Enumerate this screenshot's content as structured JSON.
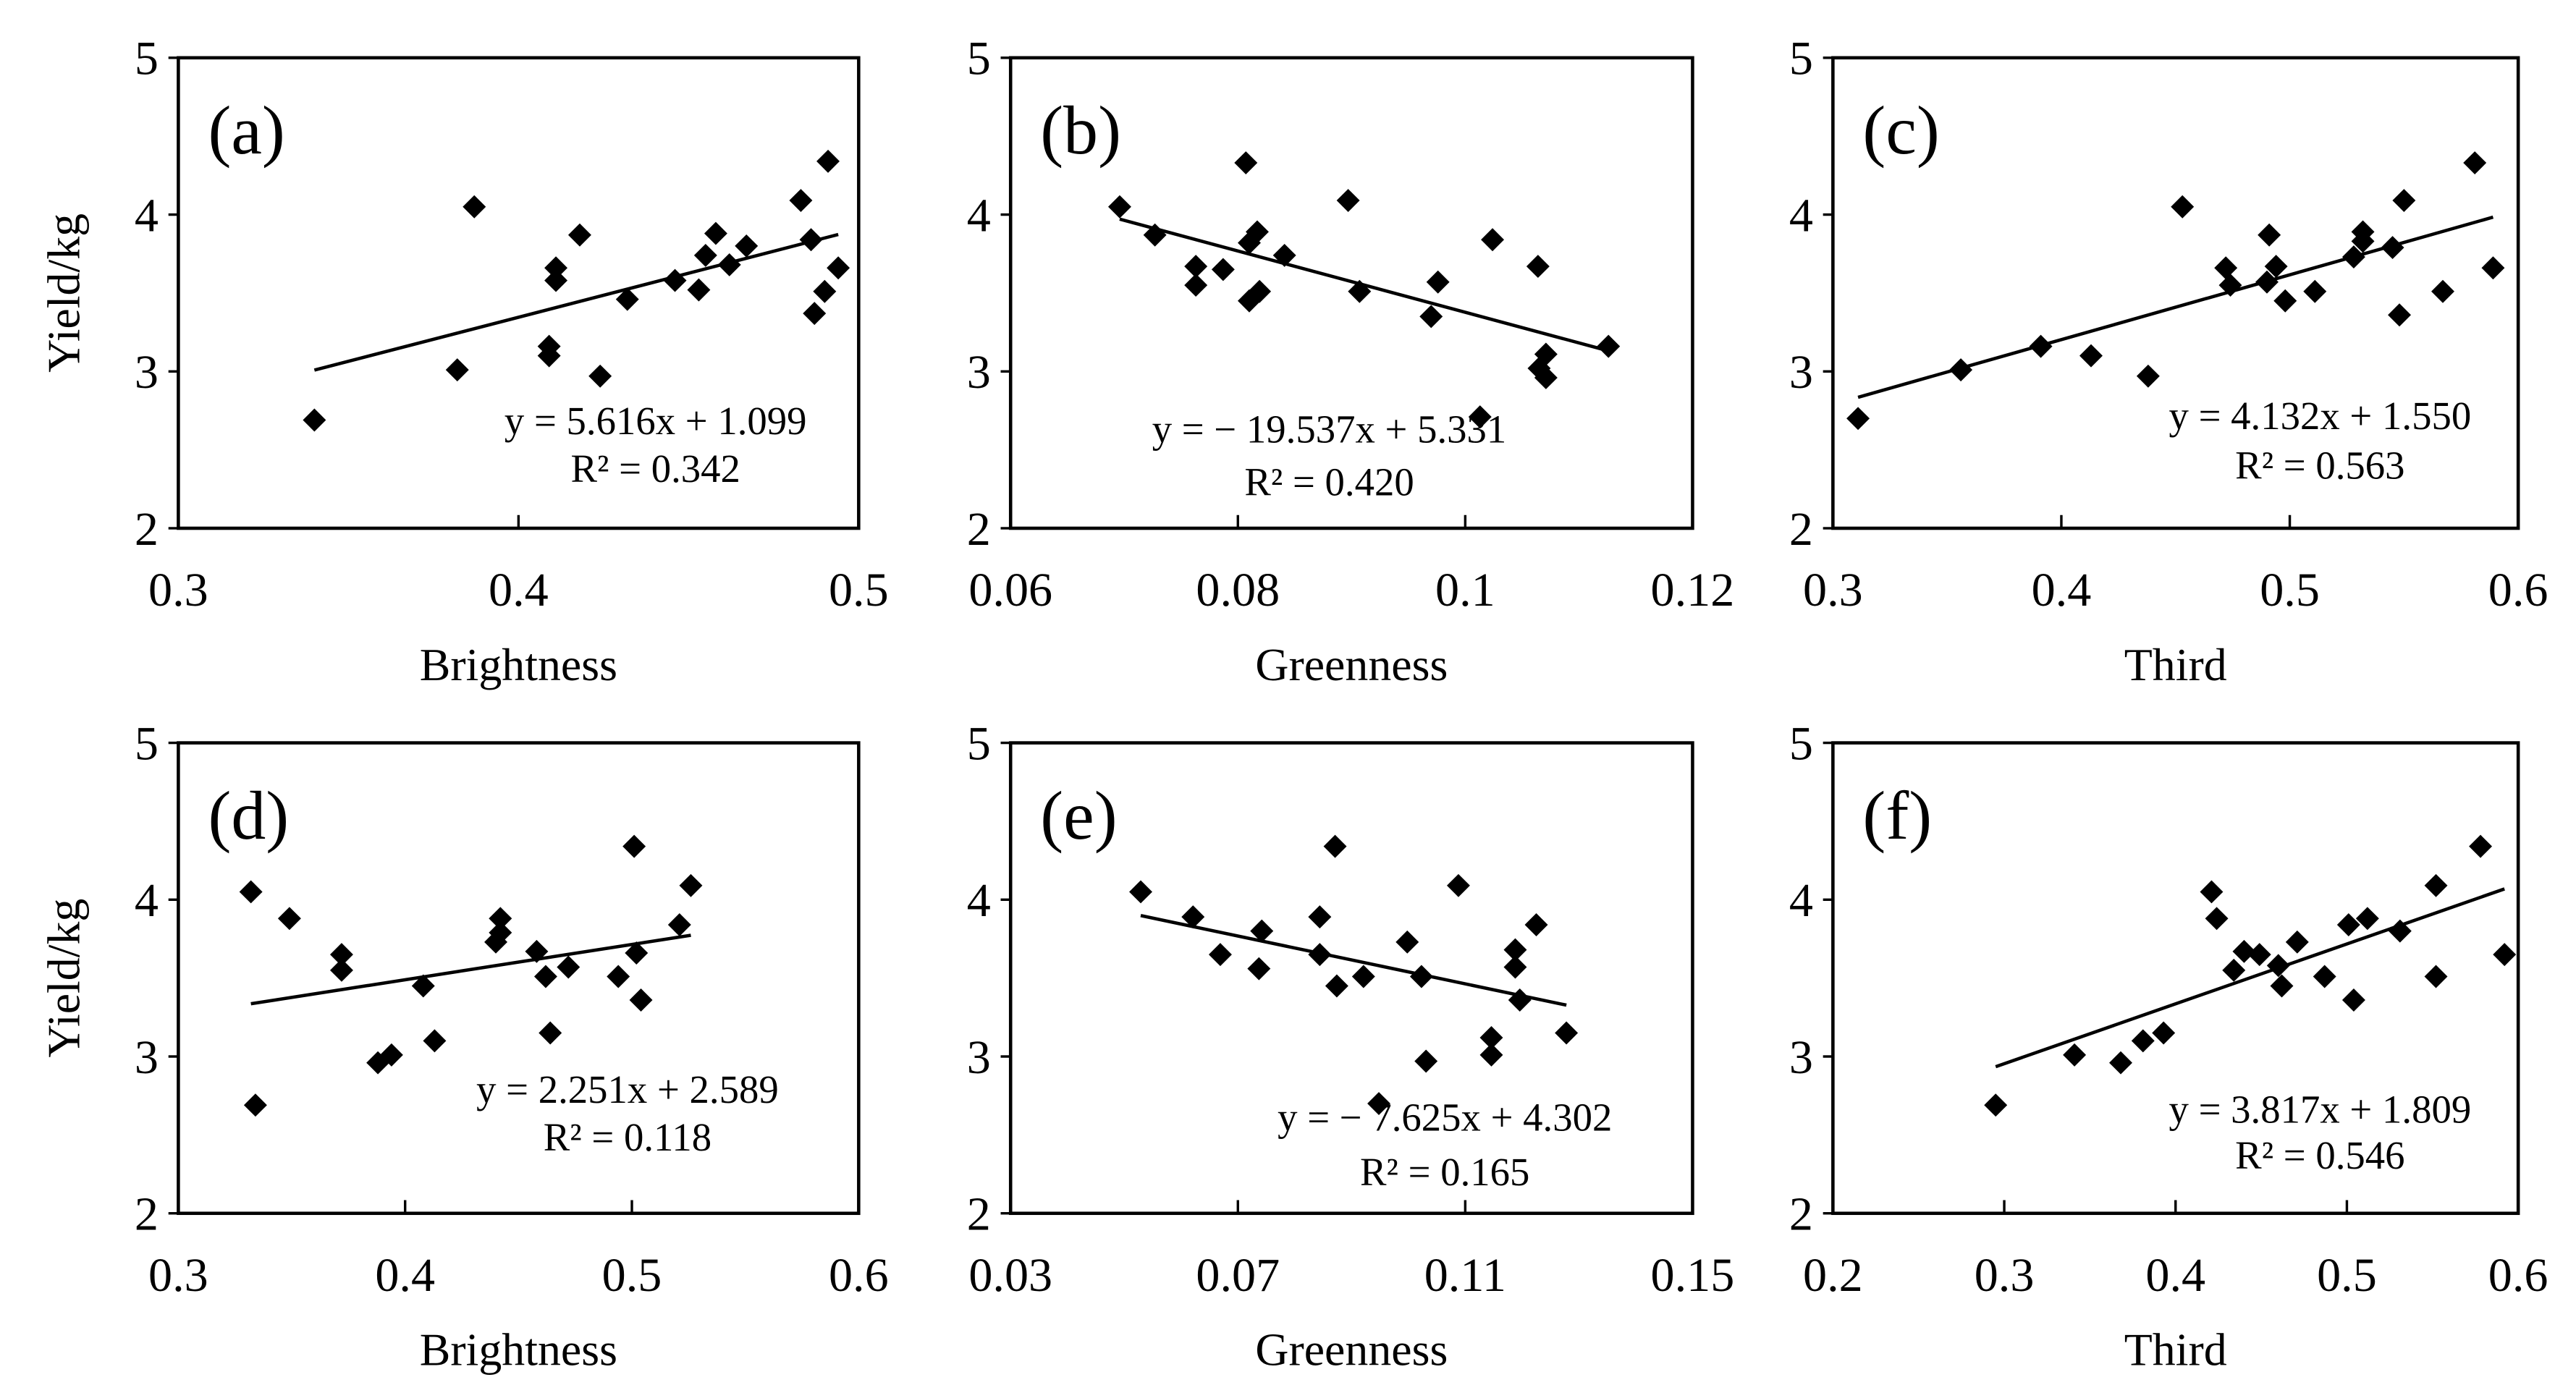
{
  "chart_data": [
    {
      "type": "scatter",
      "panel_label": "(a)",
      "xlabel": "Brightness",
      "ylabel": "Yield/kg",
      "xlim": [
        0.3,
        0.5
      ],
      "xticks": [
        0.3,
        0.4,
        0.5
      ],
      "xtick_labels": [
        "0.3",
        "0.4",
        "0.5"
      ],
      "ylim": [
        2,
        5
      ],
      "yticks": [
        2,
        3,
        4,
        5
      ],
      "ytick_labels": [
        "2",
        "3",
        "4",
        "5"
      ],
      "equation": "y = 5.616x + 1.099",
      "r2": "R² = 0.342",
      "slope": 5.616,
      "intercept": 1.099,
      "points": [
        [
          0.34,
          2.69
        ],
        [
          0.382,
          3.01
        ],
        [
          0.387,
          4.05
        ],
        [
          0.411,
          3.58
        ],
        [
          0.411,
          3.66
        ],
        [
          0.409,
          3.16
        ],
        [
          0.409,
          3.1
        ],
        [
          0.418,
          3.87
        ],
        [
          0.424,
          2.97
        ],
        [
          0.432,
          3.46
        ],
        [
          0.446,
          3.58
        ],
        [
          0.453,
          3.52
        ],
        [
          0.455,
          3.74
        ],
        [
          0.458,
          3.88
        ],
        [
          0.462,
          3.68
        ],
        [
          0.467,
          3.8
        ],
        [
          0.483,
          4.09
        ],
        [
          0.486,
          3.84
        ],
        [
          0.491,
          4.34
        ],
        [
          0.487,
          3.37
        ],
        [
          0.49,
          3.51
        ],
        [
          0.494,
          3.66
        ]
      ]
    },
    {
      "type": "scatter",
      "panel_label": "(b)",
      "xlabel": "Greenness",
      "ylabel": "",
      "xlim": [
        0.06,
        0.12
      ],
      "xticks": [
        0.06,
        0.08,
        0.1,
        0.12
      ],
      "xtick_labels": [
        "0.06",
        "0.08",
        "0.1",
        "0.12"
      ],
      "ylim": [
        2,
        5
      ],
      "yticks": [
        2,
        3,
        4,
        5
      ],
      "ytick_labels": [
        "2",
        "3",
        "4",
        "5"
      ],
      "equation": "y = − 19.537x + 5.331",
      "r2": "R² = 0.420",
      "slope": -19.537,
      "intercept": 5.331,
      "points": [
        [
          0.0696,
          4.05
        ],
        [
          0.0727,
          3.87
        ],
        [
          0.0763,
          3.67
        ],
        [
          0.0763,
          3.55
        ],
        [
          0.0787,
          3.65
        ],
        [
          0.0807,
          4.33
        ],
        [
          0.081,
          3.82
        ],
        [
          0.0817,
          3.89
        ],
        [
          0.081,
          3.45
        ],
        [
          0.0819,
          3.51
        ],
        [
          0.0841,
          3.74
        ],
        [
          0.0897,
          4.09
        ],
        [
          0.0907,
          3.51
        ],
        [
          0.0976,
          3.57
        ],
        [
          0.097,
          3.35
        ],
        [
          0.1013,
          2.71
        ],
        [
          0.1024,
          3.84
        ],
        [
          0.1064,
          3.67
        ],
        [
          0.1065,
          3.02
        ],
        [
          0.1071,
          3.11
        ],
        [
          0.1071,
          2.96
        ],
        [
          0.1126,
          3.16
        ]
      ]
    },
    {
      "type": "scatter",
      "panel_label": "(c)",
      "xlabel": "Third",
      "ylabel": "",
      "xlim": [
        0.3,
        0.6
      ],
      "xticks": [
        0.3,
        0.4,
        0.5,
        0.6
      ],
      "xtick_labels": [
        "0.3",
        "0.4",
        "0.5",
        "0.6"
      ],
      "ylim": [
        2,
        5
      ],
      "yticks": [
        2,
        3,
        4,
        5
      ],
      "ytick_labels": [
        "2",
        "3",
        "4",
        "5"
      ],
      "equation": "y = 4.132x + 1.550",
      "r2": "R² = 0.563",
      "slope": 4.132,
      "intercept": 1.55,
      "points": [
        [
          0.311,
          2.7
        ],
        [
          0.356,
          3.01
        ],
        [
          0.391,
          3.16
        ],
        [
          0.413,
          3.1
        ],
        [
          0.438,
          2.97
        ],
        [
          0.453,
          4.05
        ],
        [
          0.472,
          3.66
        ],
        [
          0.474,
          3.55
        ],
        [
          0.491,
          3.87
        ],
        [
          0.49,
          3.57
        ],
        [
          0.494,
          3.67
        ],
        [
          0.498,
          3.45
        ],
        [
          0.511,
          3.51
        ],
        [
          0.528,
          3.73
        ],
        [
          0.532,
          3.89
        ],
        [
          0.532,
          3.83
        ],
        [
          0.545,
          3.79
        ],
        [
          0.548,
          3.36
        ],
        [
          0.55,
          4.09
        ],
        [
          0.567,
          3.51
        ],
        [
          0.581,
          4.33
        ],
        [
          0.589,
          3.66
        ]
      ]
    },
    {
      "type": "scatter",
      "panel_label": "(d)",
      "xlabel": "Brightness",
      "ylabel": "Yield/kg",
      "xlim": [
        0.3,
        0.6
      ],
      "xticks": [
        0.3,
        0.4,
        0.5,
        0.6
      ],
      "xtick_labels": [
        "0.3",
        "0.4",
        "0.5",
        "0.6"
      ],
      "ylim": [
        2,
        5
      ],
      "yticks": [
        2,
        3,
        4,
        5
      ],
      "ytick_labels": [
        "2",
        "3",
        "4",
        "5"
      ],
      "equation": "y = 2.251x + 2.589",
      "r2": "R² = 0.118",
      "slope": 2.251,
      "intercept": 2.589,
      "points": [
        [
          0.332,
          4.05
        ],
        [
          0.334,
          2.69
        ],
        [
          0.349,
          3.88
        ],
        [
          0.372,
          3.65
        ],
        [
          0.372,
          3.55
        ],
        [
          0.388,
          2.96
        ],
        [
          0.394,
          3.01
        ],
        [
          0.408,
          3.45
        ],
        [
          0.413,
          3.1
        ],
        [
          0.44,
          3.73
        ],
        [
          0.442,
          3.79
        ],
        [
          0.442,
          3.88
        ],
        [
          0.458,
          3.67
        ],
        [
          0.462,
          3.51
        ],
        [
          0.464,
          3.15
        ],
        [
          0.472,
          3.57
        ],
        [
          0.494,
          3.51
        ],
        [
          0.501,
          4.34
        ],
        [
          0.502,
          3.66
        ],
        [
          0.504,
          3.36
        ],
        [
          0.521,
          3.84
        ],
        [
          0.526,
          4.09
        ]
      ]
    },
    {
      "type": "scatter",
      "panel_label": "(e)",
      "xlabel": "Greenness",
      "ylabel": "",
      "xlim": [
        0.03,
        0.15
      ],
      "xticks": [
        0.03,
        0.07,
        0.11,
        0.15
      ],
      "xtick_labels": [
        "0.03",
        "0.07",
        "0.11",
        "0.15"
      ],
      "ylim": [
        2,
        5
      ],
      "yticks": [
        2,
        3,
        4,
        5
      ],
      "ytick_labels": [
        "2",
        "3",
        "4",
        "5"
      ],
      "equation": "y = − 7.625x + 4.302",
      "r2": "R² = 0.165",
      "slope": -7.625,
      "intercept": 4.302,
      "points": [
        [
          0.0529,
          4.05
        ],
        [
          0.0621,
          3.89
        ],
        [
          0.0669,
          3.65
        ],
        [
          0.0742,
          3.8
        ],
        [
          0.0737,
          3.56
        ],
        [
          0.0844,
          3.89
        ],
        [
          0.0844,
          3.65
        ],
        [
          0.0871,
          4.34
        ],
        [
          0.0874,
          3.45
        ],
        [
          0.0921,
          3.51
        ],
        [
          0.0998,
          3.73
        ],
        [
          0.1023,
          3.51
        ],
        [
          0.1031,
          2.97
        ],
        [
          0.0948,
          2.7
        ],
        [
          0.1088,
          4.09
        ],
        [
          0.1146,
          3.12
        ],
        [
          0.1146,
          3.01
        ],
        [
          0.1188,
          3.68
        ],
        [
          0.1188,
          3.57
        ],
        [
          0.1196,
          3.36
        ],
        [
          0.1225,
          3.84
        ],
        [
          0.1278,
          3.15
        ]
      ]
    },
    {
      "type": "scatter",
      "panel_label": "(f)",
      "xlabel": "Third",
      "ylabel": "",
      "xlim": [
        0.2,
        0.6
      ],
      "xticks": [
        0.2,
        0.3,
        0.4,
        0.5,
        0.6
      ],
      "xtick_labels": [
        "0.2",
        "0.3",
        "0.4",
        "0.5",
        "0.6"
      ],
      "ylim": [
        2,
        5
      ],
      "yticks": [
        2,
        3,
        4,
        5
      ],
      "ytick_labels": [
        "2",
        "3",
        "4",
        "5"
      ],
      "equation": "y = 3.817x + 1.809",
      "r2": "R² = 0.546",
      "slope": 3.817,
      "intercept": 1.809,
      "points": [
        [
          0.295,
          2.69
        ],
        [
          0.341,
          3.01
        ],
        [
          0.368,
          2.96
        ],
        [
          0.381,
          3.1
        ],
        [
          0.393,
          3.15
        ],
        [
          0.421,
          4.05
        ],
        [
          0.424,
          3.88
        ],
        [
          0.434,
          3.55
        ],
        [
          0.44,
          3.67
        ],
        [
          0.449,
          3.65
        ],
        [
          0.46,
          3.58
        ],
        [
          0.462,
          3.45
        ],
        [
          0.471,
          3.73
        ],
        [
          0.487,
          3.51
        ],
        [
          0.501,
          3.84
        ],
        [
          0.512,
          3.88
        ],
        [
          0.504,
          3.36
        ],
        [
          0.531,
          3.8
        ],
        [
          0.552,
          4.09
        ],
        [
          0.552,
          3.51
        ],
        [
          0.578,
          4.34
        ],
        [
          0.592,
          3.65
        ]
      ]
    }
  ]
}
